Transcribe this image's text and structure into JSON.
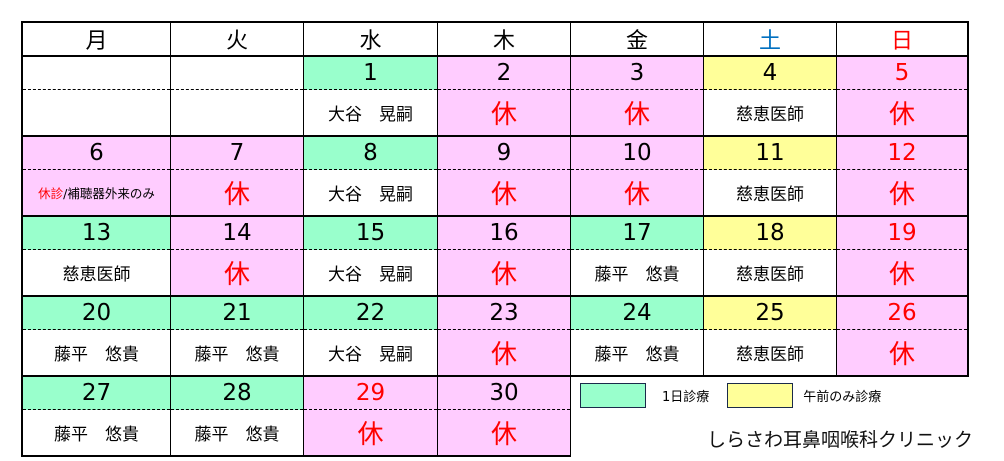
{
  "colors": {
    "full_day": "#99ffcc",
    "morning_only": "#ffff99",
    "closed": "#ffccff",
    "saturday": "#0070c0",
    "sunday": "#ff0000"
  },
  "headers": [
    "月",
    "火",
    "水",
    "木",
    "金",
    "土",
    "日"
  ],
  "weeks": [
    [
      {
        "date": "",
        "bg": "#ffffff",
        "text": "",
        "tbg": "#ffffff"
      },
      {
        "date": "",
        "bg": "#ffffff",
        "text": "",
        "tbg": "#ffffff"
      },
      {
        "date": "1",
        "bg": "#99ffcc",
        "text": "大谷　晃嗣",
        "tbg": "#ffffff"
      },
      {
        "date": "2",
        "bg": "#ffccff",
        "text": "休",
        "tbg": "#ffccff",
        "off": true
      },
      {
        "date": "3",
        "bg": "#ffccff",
        "text": "休",
        "tbg": "#ffccff",
        "off": true
      },
      {
        "date": "4",
        "bg": "#ffff99",
        "text": "慈恵医師",
        "tbg": "#ffffff"
      },
      {
        "date": "5",
        "bg": "#ffccff",
        "text": "休",
        "tbg": "#ffccff",
        "off": true,
        "red": true
      }
    ],
    [
      {
        "date": "6",
        "bg": "#ffccff",
        "text": "",
        "tbg": "#ffccff",
        "special": {
          "red": "休診",
          "rest": "/補聴器外来のみ"
        }
      },
      {
        "date": "7",
        "bg": "#ffccff",
        "text": "休",
        "tbg": "#ffccff",
        "off": true
      },
      {
        "date": "8",
        "bg": "#99ffcc",
        "text": "大谷　晃嗣",
        "tbg": "#ffffff"
      },
      {
        "date": "9",
        "bg": "#ffccff",
        "text": "休",
        "tbg": "#ffccff",
        "off": true
      },
      {
        "date": "10",
        "bg": "#ffccff",
        "text": "休",
        "tbg": "#ffccff",
        "off": true
      },
      {
        "date": "11",
        "bg": "#ffff99",
        "text": "慈恵医師",
        "tbg": "#ffffff"
      },
      {
        "date": "12",
        "bg": "#ffccff",
        "text": "休",
        "tbg": "#ffccff",
        "off": true,
        "red": true
      }
    ],
    [
      {
        "date": "13",
        "bg": "#99ffcc",
        "text": "慈恵医師",
        "tbg": "#ffffff"
      },
      {
        "date": "14",
        "bg": "#ffccff",
        "text": "休",
        "tbg": "#ffccff",
        "off": true
      },
      {
        "date": "15",
        "bg": "#99ffcc",
        "text": "大谷　晃嗣",
        "tbg": "#ffffff"
      },
      {
        "date": "16",
        "bg": "#ffccff",
        "text": "休",
        "tbg": "#ffccff",
        "off": true
      },
      {
        "date": "17",
        "bg": "#99ffcc",
        "text": "藤平　悠貴",
        "tbg": "#ffffff"
      },
      {
        "date": "18",
        "bg": "#ffff99",
        "text": "慈恵医師",
        "tbg": "#ffffff"
      },
      {
        "date": "19",
        "bg": "#ffccff",
        "text": "休",
        "tbg": "#ffccff",
        "off": true,
        "red": true
      }
    ],
    [
      {
        "date": "20",
        "bg": "#99ffcc",
        "text": "藤平　悠貴",
        "tbg": "#ffffff"
      },
      {
        "date": "21",
        "bg": "#99ffcc",
        "text": "藤平　悠貴",
        "tbg": "#ffffff"
      },
      {
        "date": "22",
        "bg": "#99ffcc",
        "text": "大谷　晃嗣",
        "tbg": "#ffffff"
      },
      {
        "date": "23",
        "bg": "#ffccff",
        "text": "休",
        "tbg": "#ffccff",
        "off": true
      },
      {
        "date": "24",
        "bg": "#99ffcc",
        "text": "藤平　悠貴",
        "tbg": "#ffffff"
      },
      {
        "date": "25",
        "bg": "#ffff99",
        "text": "慈恵医師",
        "tbg": "#ffffff"
      },
      {
        "date": "26",
        "bg": "#ffccff",
        "text": "休",
        "tbg": "#ffccff",
        "off": true,
        "red": true
      }
    ],
    [
      {
        "date": "27",
        "bg": "#99ffcc",
        "text": "藤平　悠貴",
        "tbg": "#ffffff"
      },
      {
        "date": "28",
        "bg": "#99ffcc",
        "text": "藤平　悠貴",
        "tbg": "#ffffff"
      },
      {
        "date": "29",
        "bg": "#ffccff",
        "text": "休",
        "tbg": "#ffccff",
        "off": true,
        "red": true
      },
      {
        "date": "30",
        "bg": "#ffccff",
        "text": "休",
        "tbg": "#ffccff",
        "off": true
      }
    ]
  ],
  "legend": {
    "full_day": "1日診療",
    "morning_only": "午前のみ診療"
  },
  "clinic_name": "しらさわ耳鼻咽喉科クリニック"
}
